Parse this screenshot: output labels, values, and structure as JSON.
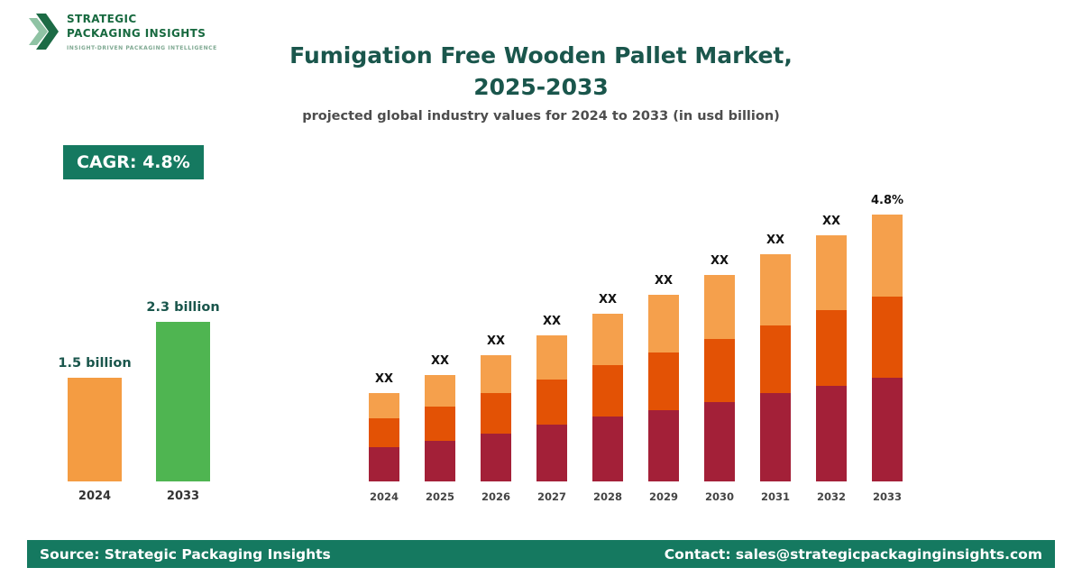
{
  "logo": {
    "line1": "STRATEGIC",
    "line2": "PACKAGING INSIGHTS",
    "tagline": "INSIGHT-DRIVEN PACKAGING INTELLIGENCE"
  },
  "header": {
    "title_line1": "Fumigation Free Wooden Pallet Market,",
    "title_line2": "2025-2033",
    "subtitle": "projected global industry values for 2024 to 2033 (in usd billion)"
  },
  "badge": {
    "label": "CAGR: 4.8%"
  },
  "colors": {
    "accent_teal": "#157960",
    "title_text": "#1a564c",
    "mini_bar_2024": "#f49c42",
    "mini_bar_2033": "#4fb551",
    "stack_bottom": "#a32038",
    "stack_middle": "#e35205",
    "stack_top": "#f5a04c"
  },
  "chart_data": [
    {
      "type": "bar",
      "name": "summary-comparison",
      "categories": [
        "2024",
        "2033"
      ],
      "values": [
        1.5,
        2.3
      ],
      "value_labels": [
        "1.5 billion",
        "2.3 billion"
      ],
      "colors": [
        "#f49c42",
        "#4fb551"
      ],
      "ylim": [
        0,
        2.5
      ],
      "grid": false,
      "legend": false
    },
    {
      "type": "bar",
      "subtype": "stacked",
      "name": "projection-2024-2033",
      "categories": [
        "2024",
        "2025",
        "2026",
        "2027",
        "2028",
        "2029",
        "2030",
        "2031",
        "2032",
        "2033"
      ],
      "series": [
        {
          "name": "bottom",
          "color": "#a32038",
          "values": [
            38,
            45,
            53,
            63,
            72,
            79,
            88,
            98,
            106,
            115
          ]
        },
        {
          "name": "middle",
          "color": "#e35205",
          "values": [
            32,
            38,
            45,
            50,
            57,
            64,
            70,
            75,
            84,
            90
          ]
        },
        {
          "name": "top",
          "color": "#f5a04c",
          "values": [
            28,
            35,
            42,
            49,
            57,
            64,
            71,
            79,
            83,
            91
          ]
        }
      ],
      "bar_labels": [
        "XX",
        "XX",
        "XX",
        "XX",
        "XX",
        "XX",
        "XX",
        "XX",
        "XX",
        "4.8%"
      ],
      "grid": false,
      "legend": false
    }
  ],
  "footer": {
    "source": "Source: Strategic Packaging Insights",
    "contact": "Contact: sales@strategicpackaginginsights.com"
  }
}
